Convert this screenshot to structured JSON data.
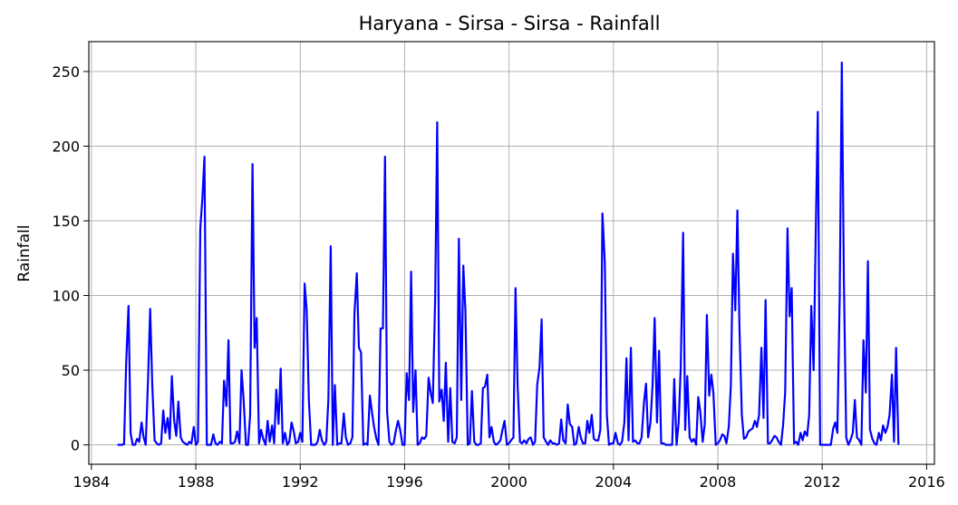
{
  "chart_data": {
    "type": "line",
    "title": "Haryana - Sirsa - Sirsa - Rainfall",
    "xlabel": "",
    "ylabel": "Rainfall",
    "xlim": [
      1983.9,
      2016.3
    ],
    "ylim": [
      -13,
      270
    ],
    "x_ticks": [
      1984,
      1988,
      1992,
      1996,
      2000,
      2004,
      2008,
      2012,
      2016
    ],
    "y_ticks": [
      0,
      50,
      100,
      150,
      200,
      250
    ],
    "grid": true,
    "line_color": "#0000ff",
    "series": [
      {
        "x": [
          1985.0,
          1985.08,
          1985.17,
          1985.25,
          1985.33,
          1985.42,
          1985.5,
          1985.58,
          1985.67,
          1985.75,
          1985.83,
          1985.92,
          1986.0,
          1986.08,
          1986.17,
          1986.25,
          1986.33,
          1986.42,
          1986.5,
          1986.58,
          1986.67,
          1986.75,
          1986.83,
          1986.92,
          1987.0,
          1987.08,
          1987.17,
          1987.25,
          1987.33,
          1987.42,
          1987.5,
          1987.58,
          1987.67,
          1987.75,
          1987.83,
          1987.92,
          1988.0,
          1988.08,
          1988.17,
          1988.25,
          1988.33,
          1988.42,
          1988.5,
          1988.58,
          1988.67,
          1988.75,
          1988.83,
          1988.92,
          1989.0,
          1989.08,
          1989.17,
          1989.25,
          1989.33,
          1989.42,
          1989.5,
          1989.58,
          1989.67,
          1989.75,
          1989.83,
          1989.92,
          1990.0,
          1990.08,
          1990.17,
          1990.25,
          1990.33,
          1990.42,
          1990.5,
          1990.58,
          1990.67,
          1990.75,
          1990.83,
          1990.92,
          1991.0,
          1991.08,
          1991.17,
          1991.25,
          1991.33,
          1991.42,
          1991.5,
          1991.58,
          1991.67,
          1991.75,
          1991.83,
          1991.92,
          1992.0,
          1992.08,
          1992.17,
          1992.25,
          1992.33,
          1992.42,
          1992.5,
          1992.58,
          1992.67,
          1992.75,
          1992.83,
          1992.92,
          1993.0,
          1993.08,
          1993.17,
          1993.25,
          1993.33,
          1993.42,
          1993.5,
          1993.58,
          1993.67,
          1993.75,
          1993.83,
          1993.92,
          1994.0,
          1994.08,
          1994.17,
          1994.25,
          1994.33,
          1994.42,
          1994.5,
          1994.58,
          1994.67,
          1994.75,
          1994.83,
          1994.92,
          1995.0,
          1995.08,
          1995.17,
          1995.25,
          1995.33,
          1995.42,
          1995.5,
          1995.58,
          1995.67,
          1995.75,
          1995.83,
          1995.92,
          1996.0,
          1996.08,
          1996.17,
          1996.25,
          1996.33,
          1996.42,
          1996.5,
          1996.58,
          1996.67,
          1996.75,
          1996.83,
          1996.92,
          1997.0,
          1997.08,
          1997.17,
          1997.25,
          1997.33,
          1997.42,
          1997.5,
          1997.58,
          1997.67,
          1997.75,
          1997.83,
          1997.92,
          1998.0,
          1998.08,
          1998.17,
          1998.25,
          1998.33,
          1998.42,
          1998.5,
          1998.58,
          1998.67,
          1998.75,
          1998.83,
          1998.92,
          1999.0,
          1999.08,
          1999.17,
          1999.25,
          1999.33,
          1999.42,
          1999.5,
          1999.58,
          1999.67,
          1999.75,
          1999.83,
          1999.92,
          2000.0,
          2000.08,
          2000.17,
          2000.25,
          2000.33,
          2000.42,
          2000.5,
          2000.58,
          2000.67,
          2000.75,
          2000.83,
          2000.92,
          2001.0,
          2001.08,
          2001.17,
          2001.25,
          2001.33,
          2001.42,
          2001.5,
          2001.58,
          2001.67,
          2001.75,
          2001.83,
          2001.92,
          2002.0,
          2002.08,
          2002.17,
          2002.25,
          2002.33,
          2002.42,
          2002.5,
          2002.58,
          2002.67,
          2002.75,
          2002.83,
          2002.92,
          2003.0,
          2003.08,
          2003.17,
          2003.25,
          2003.33,
          2003.42,
          2003.5,
          2003.58,
          2003.67,
          2003.75,
          2003.83,
          2003.92,
          2004.0,
          2004.08,
          2004.17,
          2004.25,
          2004.33,
          2004.42,
          2004.5,
          2004.58,
          2004.67,
          2004.75,
          2004.83,
          2004.92,
          2005.0,
          2005.08,
          2005.17,
          2005.25,
          2005.33,
          2005.42,
          2005.5,
          2005.58,
          2005.67,
          2005.75,
          2005.83,
          2005.92,
          2006.0,
          2006.08,
          2006.17,
          2006.25,
          2006.33,
          2006.42,
          2006.5,
          2006.58,
          2006.67,
          2006.75,
          2006.83,
          2006.92,
          2007.0,
          2007.08,
          2007.17,
          2007.25,
          2007.33,
          2007.42,
          2007.5,
          2007.58,
          2007.67,
          2007.75,
          2007.83,
          2007.92,
          2008.0,
          2008.08,
          2008.17,
          2008.25,
          2008.33,
          2008.42,
          2008.5,
          2008.58,
          2008.67,
          2008.75,
          2008.83,
          2008.92,
          2009.0,
          2009.08,
          2009.17,
          2009.25,
          2009.33,
          2009.42,
          2009.5,
          2009.58,
          2009.67,
          2009.75,
          2009.83,
          2009.92,
          2010.0,
          2010.08,
          2010.17,
          2010.25,
          2010.33,
          2010.42,
          2010.5,
          2010.58,
          2010.67,
          2010.75,
          2010.83,
          2010.92,
          2011.0,
          2011.08,
          2011.17,
          2011.25,
          2011.33,
          2011.42,
          2011.5,
          2011.58,
          2011.67,
          2011.75,
          2011.83,
          2011.92,
          2012.0,
          2012.08,
          2012.17,
          2012.25,
          2012.33,
          2012.42,
          2012.5,
          2012.58,
          2012.67,
          2012.75,
          2012.83,
          2012.92,
          2013.0,
          2013.08,
          2013.17,
          2013.25,
          2013.33,
          2013.42,
          2013.5,
          2013.58,
          2013.67,
          2013.75,
          2013.83,
          2013.92,
          2014.0,
          2014.08,
          2014.17,
          2014.25,
          2014.33,
          2014.42,
          2014.5,
          2014.58,
          2014.67,
          2014.75,
          2014.83,
          2014.92
        ],
        "y": [
          0,
          0,
          0,
          0.5,
          55,
          93,
          8,
          0,
          0,
          4,
          2,
          15,
          5,
          0,
          45,
          91,
          40,
          3,
          1,
          0,
          1,
          23,
          8,
          18,
          4,
          46,
          16,
          6,
          29,
          5,
          2,
          1,
          0,
          2,
          1,
          12,
          0,
          2,
          145,
          165,
          193,
          0,
          0,
          0,
          7,
          1,
          0,
          2,
          1,
          43,
          26,
          70,
          1,
          1,
          2,
          9,
          1,
          50,
          30,
          0,
          0,
          20,
          188,
          65,
          85,
          1,
          10,
          4,
          0,
          16,
          2,
          13,
          1,
          37,
          14,
          51,
          1,
          8,
          0,
          2,
          15,
          9,
          1,
          2,
          8,
          2,
          108,
          90,
          30,
          0,
          0,
          0,
          2,
          10,
          3,
          0,
          2,
          30,
          133,
          0,
          40,
          0,
          1,
          1,
          21,
          5,
          0,
          1,
          5,
          88,
          115,
          65,
          62,
          0,
          1,
          0,
          33,
          22,
          12,
          4,
          0,
          78,
          78,
          193,
          22,
          2,
          0,
          1,
          10,
          16,
          10,
          0,
          0,
          48,
          30,
          116,
          22,
          50,
          0,
          1,
          5,
          4,
          6,
          45,
          35,
          28,
          97,
          216,
          29,
          37,
          16,
          55,
          2,
          38,
          2,
          1,
          5,
          138,
          30,
          120,
          90,
          0,
          1,
          36,
          2,
          0,
          0,
          1,
          38,
          39,
          47,
          5,
          12,
          2,
          0,
          1,
          3,
          10,
          16,
          0,
          1,
          3,
          5,
          105,
          40,
          2,
          1,
          3,
          1,
          4,
          5,
          0,
          2,
          40,
          52,
          84,
          5,
          2,
          0,
          3,
          1,
          1,
          0,
          1,
          17,
          3,
          1,
          27,
          14,
          12,
          0,
          1,
          12,
          5,
          1,
          1,
          16,
          8,
          20,
          4,
          3,
          3,
          10,
          155,
          122,
          20,
          0,
          1,
          1,
          8,
          1,
          0,
          2,
          15,
          58,
          3,
          65,
          2,
          3,
          1,
          1,
          5,
          28,
          41,
          5,
          15,
          40,
          85,
          15,
          63,
          1,
          1,
          0,
          0,
          0,
          0,
          44,
          0,
          15,
          52,
          142,
          10,
          46,
          5,
          2,
          4,
          0,
          32,
          22,
          2,
          14,
          87,
          33,
          47,
          35,
          0,
          1,
          3,
          7,
          6,
          1,
          12,
          40,
          128,
          90,
          157,
          78,
          20,
          4,
          5,
          9,
          10,
          11,
          16,
          12,
          20,
          65,
          18,
          97,
          1,
          1,
          3,
          6,
          5,
          2,
          0,
          13,
          35,
          145,
          86,
          105,
          1,
          2,
          0,
          8,
          3,
          9,
          6,
          20,
          93,
          50,
          140,
          223,
          0,
          0,
          0,
          0,
          0,
          0,
          11,
          15,
          8,
          100,
          256,
          110,
          5,
          0,
          3,
          8,
          30,
          5,
          3,
          0,
          70,
          35,
          123,
          10,
          4,
          1,
          0,
          8,
          3,
          13,
          8,
          12,
          20,
          47,
          2,
          65,
          0
        ]
      }
    ]
  }
}
